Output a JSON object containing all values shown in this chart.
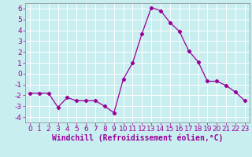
{
  "x": [
    0,
    1,
    2,
    3,
    4,
    5,
    6,
    7,
    8,
    9,
    10,
    11,
    12,
    13,
    14,
    15,
    16,
    17,
    18,
    19,
    20,
    21,
    22,
    23
  ],
  "y": [
    -1.8,
    -1.8,
    -1.8,
    -3.1,
    -2.2,
    -2.5,
    -2.5,
    -2.5,
    -3.0,
    -3.6,
    -0.5,
    1.0,
    3.7,
    6.1,
    5.8,
    4.7,
    3.9,
    2.1,
    1.1,
    -0.7,
    -0.7,
    -1.1,
    -1.7,
    -2.5
  ],
  "line_color": "#990099",
  "marker": "D",
  "marker_size": 2.2,
  "bg_color": "#c8eef0",
  "grid_color": "#ffffff",
  "xlabel": "Windchill (Refroidissement éolien,°C)",
  "xlim": [
    -0.5,
    23.5
  ],
  "ylim": [
    -4.5,
    6.5
  ],
  "yticks": [
    -4,
    -3,
    -2,
    -1,
    0,
    1,
    2,
    3,
    4,
    5,
    6
  ],
  "xticks": [
    0,
    1,
    2,
    3,
    4,
    5,
    6,
    7,
    8,
    9,
    10,
    11,
    12,
    13,
    14,
    15,
    16,
    17,
    18,
    19,
    20,
    21,
    22,
    23
  ],
  "tick_fontsize": 6.5,
  "xlabel_fontsize": 7.0
}
